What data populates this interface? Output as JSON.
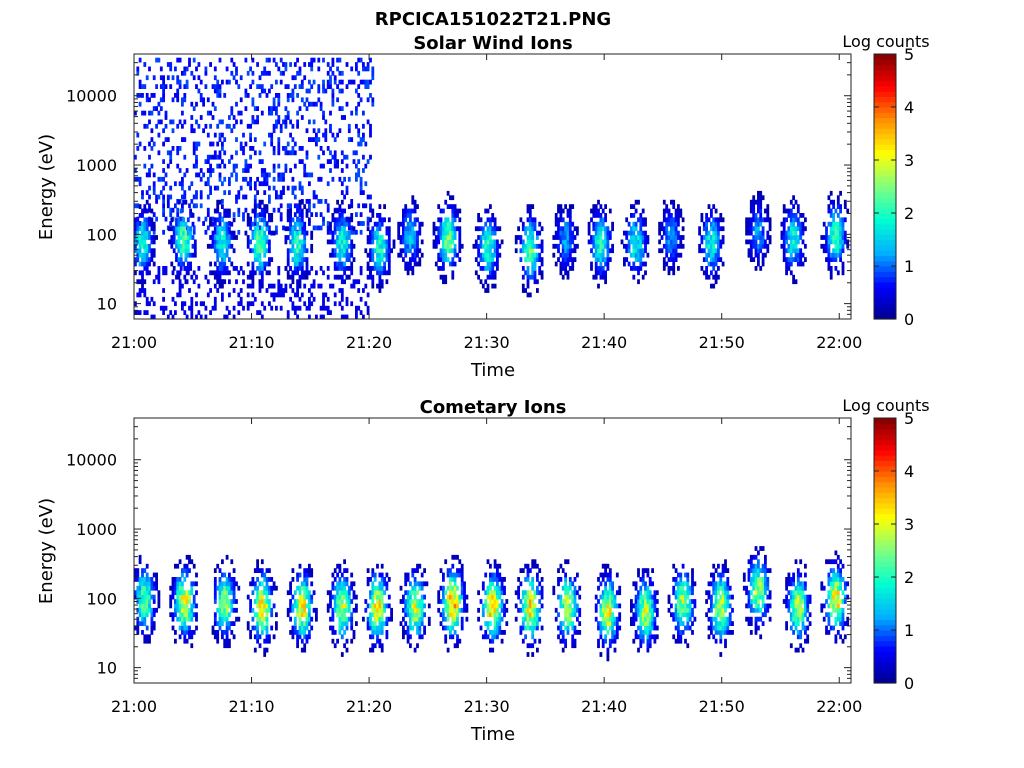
{
  "figure_title": "RPCICA151022T21.PNG",
  "colormap_stops": [
    "#00008f",
    "#0000ff",
    "#00b0ff",
    "#00ffd0",
    "#80ff80",
    "#ffff00",
    "#ff9000",
    "#ff0000",
    "#800000"
  ],
  "chart_data": [
    {
      "type": "heatmap",
      "title": "Solar Wind Ions",
      "xlabel": "Time",
      "ylabel": "Energy (eV)",
      "xlim": [
        "21:00",
        "22:01"
      ],
      "x_ticks": [
        "21:00",
        "21:10",
        "21:20",
        "21:30",
        "21:40",
        "21:50",
        "22:00"
      ],
      "y_scale": "log",
      "ylim": [
        6,
        40000
      ],
      "y_ticks": [
        {
          "value": 10,
          "label": "10"
        },
        {
          "value": 100,
          "label": "100"
        },
        {
          "value": 1000,
          "label": "1000"
        },
        {
          "value": 10000,
          "label": "10000"
        }
      ],
      "colorbar": {
        "label": "Log counts",
        "range": [
          0,
          5
        ],
        "ticks": [
          "0",
          "1",
          "2",
          "3",
          "4",
          "5"
        ]
      },
      "bursts": [
        {
          "t": 0.6,
          "center_eV": 70,
          "peak": 1.9
        },
        {
          "t": 4.1,
          "center_eV": 80,
          "peak": 2.2
        },
        {
          "t": 7.4,
          "center_eV": 70,
          "peak": 1.9
        },
        {
          "t": 10.6,
          "center_eV": 70,
          "peak": 2.4
        },
        {
          "t": 13.8,
          "center_eV": 70,
          "peak": 2.1
        },
        {
          "t": 17.6,
          "center_eV": 70,
          "peak": 1.9
        },
        {
          "t": 20.8,
          "center_eV": 60,
          "peak": 1.9
        },
        {
          "t": 23.4,
          "center_eV": 90,
          "peak": 1.4
        },
        {
          "t": 26.6,
          "center_eV": 80,
          "peak": 2.4
        },
        {
          "t": 30.0,
          "center_eV": 60,
          "peak": 2.0
        },
        {
          "t": 33.6,
          "center_eV": 55,
          "peak": 2.3
        },
        {
          "t": 36.6,
          "center_eV": 80,
          "peak": 1.2
        },
        {
          "t": 39.6,
          "center_eV": 70,
          "peak": 2.0
        },
        {
          "t": 42.6,
          "center_eV": 70,
          "peak": 1.8
        },
        {
          "t": 45.6,
          "center_eV": 90,
          "peak": 1.2
        },
        {
          "t": 49.0,
          "center_eV": 70,
          "peak": 1.8
        },
        {
          "t": 53.0,
          "center_eV": 100,
          "peak": 1.2
        },
        {
          "t": 56.0,
          "center_eV": 80,
          "peak": 1.8
        },
        {
          "t": 59.6,
          "center_eV": 90,
          "peak": 2.1
        }
      ],
      "solar_wind_scatter": {
        "t_range": [
          0,
          20.3
        ],
        "eV_range": [
          100,
          40000
        ],
        "value": 0.7
      }
    },
    {
      "type": "heatmap",
      "title": "Cometary Ions",
      "xlabel": "Time",
      "ylabel": "Energy (eV)",
      "xlim": [
        "21:00",
        "22:01"
      ],
      "x_ticks": [
        "21:00",
        "21:10",
        "21:20",
        "21:30",
        "21:40",
        "21:50",
        "22:00"
      ],
      "y_scale": "log",
      "ylim": [
        6,
        40000
      ],
      "y_ticks": [
        {
          "value": 10,
          "label": "10"
        },
        {
          "value": 100,
          "label": "100"
        },
        {
          "value": 1000,
          "label": "1000"
        },
        {
          "value": 10000,
          "label": "10000"
        }
      ],
      "colorbar": {
        "label": "Log counts",
        "range": [
          0,
          5
        ],
        "ticks": [
          "0",
          "1",
          "2",
          "3",
          "4",
          "5"
        ]
      },
      "bursts": [
        {
          "t": 0.8,
          "center_eV": 90,
          "peak": 2.3
        },
        {
          "t": 4.2,
          "center_eV": 80,
          "peak": 3.2
        },
        {
          "t": 7.6,
          "center_eV": 80,
          "peak": 2.6
        },
        {
          "t": 10.8,
          "center_eV": 70,
          "peak": 3.3
        },
        {
          "t": 14.2,
          "center_eV": 70,
          "peak": 3.1
        },
        {
          "t": 17.6,
          "center_eV": 70,
          "peak": 2.8
        },
        {
          "t": 20.6,
          "center_eV": 70,
          "peak": 3.2
        },
        {
          "t": 23.8,
          "center_eV": 70,
          "peak": 2.9
        },
        {
          "t": 27.0,
          "center_eV": 80,
          "peak": 3.7
        },
        {
          "t": 30.4,
          "center_eV": 70,
          "peak": 3.4
        },
        {
          "t": 33.6,
          "center_eV": 70,
          "peak": 3.3
        },
        {
          "t": 36.8,
          "center_eV": 70,
          "peak": 2.9
        },
        {
          "t": 40.2,
          "center_eV": 60,
          "peak": 3.1
        },
        {
          "t": 43.4,
          "center_eV": 60,
          "peak": 2.8
        },
        {
          "t": 46.6,
          "center_eV": 80,
          "peak": 2.7
        },
        {
          "t": 49.8,
          "center_eV": 70,
          "peak": 3.0
        },
        {
          "t": 53.0,
          "center_eV": 120,
          "peak": 2.7
        },
        {
          "t": 56.4,
          "center_eV": 70,
          "peak": 2.9
        },
        {
          "t": 59.6,
          "center_eV": 90,
          "peak": 3.2
        }
      ]
    }
  ]
}
